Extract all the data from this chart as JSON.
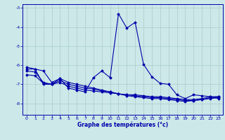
{
  "title": "Graphe des températures (°c)",
  "background_color": "#cce8e8",
  "line_color": "#0000aa",
  "grid_color": "#aacccc",
  "xlim": [
    -0.5,
    23.5
  ],
  "ylim": [
    -8.6,
    -2.8
  ],
  "xticks": [
    0,
    1,
    2,
    3,
    4,
    5,
    6,
    7,
    8,
    9,
    10,
    11,
    12,
    13,
    14,
    15,
    16,
    17,
    18,
    19,
    20,
    21,
    22,
    23
  ],
  "yticks": [
    -8,
    -7,
    -6,
    -5,
    -4,
    -3
  ],
  "series": [
    [
      -6.2,
      -6.2,
      -6.3,
      -6.9,
      -6.7,
      -7.2,
      -7.3,
      -7.4,
      -6.65,
      -6.3,
      -6.65,
      -3.3,
      -4.05,
      -3.75,
      -5.95,
      -6.6,
      -6.95,
      -7.0,
      -7.55,
      -7.75,
      -7.55,
      -7.6,
      -7.65,
      -7.75
    ],
    [
      -6.3,
      -6.35,
      -6.9,
      -7.0,
      -6.8,
      -7.0,
      -7.1,
      -7.2,
      -7.25,
      -7.35,
      -7.4,
      -7.5,
      -7.55,
      -7.55,
      -7.6,
      -7.65,
      -7.65,
      -7.7,
      -7.75,
      -7.8,
      -7.8,
      -7.75,
      -7.65,
      -7.65
    ],
    [
      -6.5,
      -6.55,
      -6.95,
      -7.0,
      -6.9,
      -7.1,
      -7.2,
      -7.3,
      -7.35,
      -7.4,
      -7.45,
      -7.5,
      -7.55,
      -7.6,
      -7.65,
      -7.7,
      -7.7,
      -7.75,
      -7.8,
      -7.85,
      -7.85,
      -7.8,
      -7.75,
      -7.7
    ],
    [
      -6.1,
      -6.2,
      -7.0,
      -7.0,
      -6.7,
      -6.9,
      -7.0,
      -7.1,
      -7.2,
      -7.3,
      -7.4,
      -7.5,
      -7.6,
      -7.65,
      -7.7,
      -7.75,
      -7.75,
      -7.8,
      -7.85,
      -7.9,
      -7.85,
      -7.8,
      -7.7,
      -7.65
    ]
  ]
}
